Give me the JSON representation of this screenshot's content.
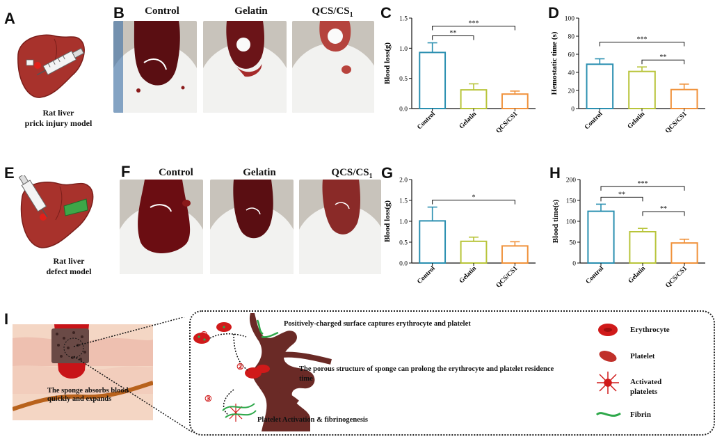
{
  "panels": {
    "A": {
      "letter": "A",
      "caption_l1": "Rat liver",
      "caption_l2": "prick injury model"
    },
    "B": {
      "letter": "B",
      "labels": [
        "Control",
        "Gelatin",
        "QCS/CS"
      ],
      "subscript": "1"
    },
    "E": {
      "letter": "E",
      "caption_l1": "Rat liver",
      "caption_l2": "defect model"
    },
    "F": {
      "letter": "F",
      "labels": [
        "Control",
        "Gelatin",
        "QCS/CS"
      ],
      "subscript": "1"
    },
    "I": {
      "letter": "I",
      "sponge_text": "The sponge absorbs blood quickly and expands",
      "step1": "Positively-charged surface captures erythrocyte and platelet",
      "step2": "The porous structure  of sponge can prolong the erythrocyte and platelet residence  time",
      "step3": "Platelet Activation & fibrinogenesis",
      "markers": [
        "①",
        "②",
        "③"
      ],
      "legend": [
        "Erythrocyte",
        "Platelet",
        "Activated platelets",
        "Fibrin"
      ]
    }
  },
  "colors": {
    "control": "#2a8fb0",
    "gelatin": "#b8c43a",
    "qcs": "#f0913a",
    "liver": "#a8322c",
    "blood": "#6b0d12"
  },
  "chart_data": [
    {
      "panel": "C",
      "type": "bar",
      "categories": [
        "Control",
        "Gelatin",
        "QCS/CS1"
      ],
      "values": [
        0.93,
        0.31,
        0.24
      ],
      "errors": [
        0.16,
        0.1,
        0.05
      ],
      "ylabel": "Blood loss(g)",
      "ylim": [
        0,
        1.5
      ],
      "yticks": [
        "0.0",
        "0.5",
        "1.0",
        "1.5"
      ],
      "significance": [
        {
          "from": 0,
          "to": 1,
          "label": "**"
        },
        {
          "from": 0,
          "to": 2,
          "label": "***"
        }
      ]
    },
    {
      "panel": "D",
      "type": "bar",
      "categories": [
        "Control",
        "Gelatin",
        "QCS/CS1"
      ],
      "values": [
        49,
        41,
        21
      ],
      "errors": [
        6,
        5,
        6
      ],
      "ylabel": "Hemostatic time (s)",
      "ylim": [
        0,
        100
      ],
      "yticks": [
        "0",
        "20",
        "40",
        "60",
        "80",
        "100"
      ],
      "significance": [
        {
          "from": 0,
          "to": 2,
          "label": "***"
        },
        {
          "from": 1,
          "to": 2,
          "label": "**"
        }
      ]
    },
    {
      "panel": "G",
      "type": "bar",
      "categories": [
        "Control",
        "Gelatin",
        "QCS/CS1"
      ],
      "values": [
        1.01,
        0.52,
        0.41
      ],
      "errors": [
        0.33,
        0.1,
        0.1
      ],
      "ylabel": "Blood loss(g)",
      "ylim": [
        0,
        2.0
      ],
      "yticks": [
        "0.0",
        "0.5",
        "1.0",
        "1.5",
        "2.0"
      ],
      "significance": [
        {
          "from": 0,
          "to": 2,
          "label": "*"
        }
      ]
    },
    {
      "panel": "H",
      "type": "bar",
      "categories": [
        "Control",
        "Gelatin",
        "QCS/CS1"
      ],
      "values": [
        124,
        75,
        48
      ],
      "errors": [
        17,
        8,
        9
      ],
      "ylabel": "Blood time(s)",
      "ylim": [
        0,
        200
      ],
      "yticks": [
        "0",
        "50",
        "100",
        "150",
        "200"
      ],
      "significance": [
        {
          "from": 0,
          "to": 1,
          "label": "**"
        },
        {
          "from": 0,
          "to": 2,
          "label": "***"
        },
        {
          "from": 1,
          "to": 2,
          "label": "**"
        }
      ]
    }
  ]
}
